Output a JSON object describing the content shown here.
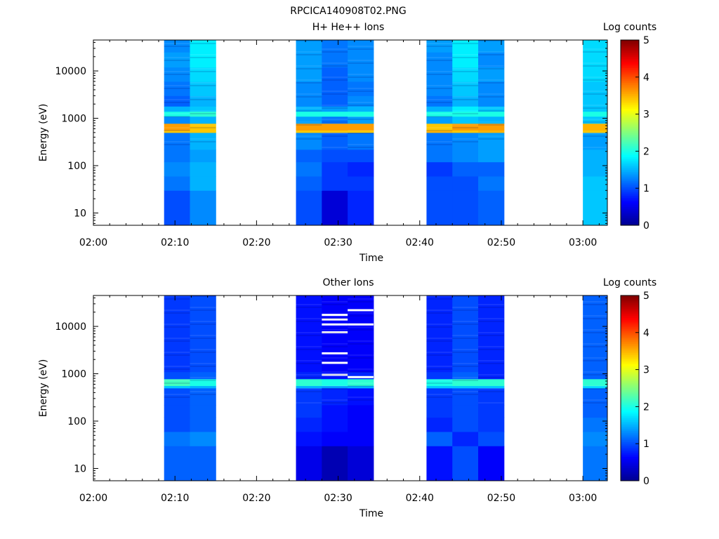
{
  "title": "RPCICA140908T02.PNG",
  "colormap": [
    "#00008f",
    "#0000ff",
    "#0080ff",
    "#00ffff",
    "#80ff80",
    "#ffff00",
    "#ff8000",
    "#ff0000",
    "#800000"
  ],
  "chart_data": [
    {
      "type": "heatmap",
      "title": "H+ He++ Ions",
      "xlabel": "Time",
      "ylabel": "Energy (eV)",
      "colorbar_label": "Log counts",
      "colorbar_ticks": [
        "0",
        "1",
        "2",
        "3",
        "4",
        "5"
      ],
      "clim": [
        0,
        5
      ],
      "xlim": [
        "02:00",
        "03:03"
      ],
      "ylim": [
        5.5,
        45000
      ],
      "yscale": "log",
      "xticks": [
        "02:00",
        "02:10",
        "02:20",
        "02:30",
        "02:40",
        "02:50",
        "03:00"
      ],
      "yticks": [
        "10",
        "100",
        "1000",
        "10000"
      ],
      "time_bins": [
        {
          "start": "02:08:40",
          "end": "02:11:50"
        },
        {
          "start": "02:11:50",
          "end": "02:15:00"
        },
        {
          "start": "02:24:50",
          "end": "02:28:00"
        },
        {
          "start": "02:28:00",
          "end": "02:31:10"
        },
        {
          "start": "02:31:10",
          "end": "02:34:20"
        },
        {
          "start": "02:40:50",
          "end": "02:44:00"
        },
        {
          "start": "02:44:00",
          "end": "02:47:10"
        },
        {
          "start": "02:47:10",
          "end": "02:50:20"
        },
        {
          "start": "03:00:00",
          "end": "03:03:10"
        }
      ],
      "energy_bins": [
        {
          "lo": 5.5,
          "hi": 30,
          "values": [
            1.0,
            1.3,
            1.0,
            0.4,
            0.8,
            1.0,
            1.0,
            1.1,
            1.6
          ]
        },
        {
          "lo": 30,
          "hi": 60,
          "values": [
            1.2,
            1.5,
            1.1,
            0.9,
            0.9,
            1.0,
            1.0,
            1.2,
            1.6
          ]
        },
        {
          "lo": 60,
          "hi": 120,
          "values": [
            1.3,
            1.5,
            1.2,
            0.9,
            0.8,
            0.9,
            1.1,
            1.1,
            1.5
          ]
        },
        {
          "lo": 120,
          "hi": 220,
          "values": [
            1.2,
            1.4,
            1.1,
            1.0,
            1.0,
            1.2,
            1.3,
            1.4,
            1.5
          ]
        },
        {
          "lo": 220,
          "hi": 500,
          "values": [
            1.2,
            1.5,
            1.3,
            1.1,
            1.2,
            1.2,
            1.3,
            1.4,
            1.4
          ]
        },
        {
          "lo": 500,
          "hi": 560,
          "values": [
            3.4,
            3.4,
            3.4,
            3.4,
            3.4,
            3.5,
            3.4,
            3.5,
            3.4
          ]
        },
        {
          "lo": 560,
          "hi": 780,
          "values": [
            3.6,
            3.4,
            3.6,
            3.6,
            3.6,
            3.4,
            3.6,
            3.6,
            3.5
          ]
        },
        {
          "lo": 780,
          "hi": 1100,
          "values": [
            1.3,
            1.5,
            1.4,
            1.2,
            1.4,
            1.4,
            1.6,
            1.5,
            1.6
          ]
        },
        {
          "lo": 1100,
          "hi": 1400,
          "values": [
            2.0,
            2.1,
            2.0,
            2.0,
            2.0,
            2.0,
            2.0,
            2.0,
            2.0
          ]
        },
        {
          "lo": 1400,
          "hi": 1800,
          "values": [
            1.5,
            1.6,
            1.5,
            1.4,
            1.5,
            1.5,
            1.8,
            1.6,
            1.6
          ]
        },
        {
          "lo": 1800,
          "hi": 3000,
          "values": [
            1.1,
            1.5,
            1.3,
            1.1,
            1.3,
            1.2,
            1.5,
            1.3,
            1.6
          ]
        },
        {
          "lo": 3000,
          "hi": 6000,
          "values": [
            1.2,
            1.6,
            1.3,
            1.1,
            1.2,
            1.3,
            1.6,
            1.3,
            1.6
          ]
        },
        {
          "lo": 6000,
          "hi": 12000,
          "values": [
            1.3,
            1.7,
            1.4,
            1.1,
            1.3,
            1.3,
            1.7,
            1.4,
            1.7
          ]
        },
        {
          "lo": 12000,
          "hi": 25000,
          "values": [
            1.4,
            1.8,
            1.4,
            1.2,
            1.3,
            1.3,
            1.8,
            1.3,
            1.7
          ]
        },
        {
          "lo": 25000,
          "hi": 45000,
          "values": [
            1.3,
            1.8,
            1.4,
            1.2,
            1.3,
            1.4,
            1.8,
            1.4,
            1.7
          ]
        }
      ]
    },
    {
      "type": "heatmap",
      "title": "Other Ions",
      "xlabel": "Time",
      "ylabel": "Energy (eV)",
      "colorbar_label": "Log counts",
      "colorbar_ticks": [
        "0",
        "1",
        "2",
        "3",
        "4",
        "5"
      ],
      "clim": [
        0,
        5
      ],
      "xlim": [
        "02:00",
        "03:03"
      ],
      "ylim": [
        5.5,
        45000
      ],
      "yscale": "log",
      "xticks": [
        "02:00",
        "02:10",
        "02:20",
        "02:30",
        "02:40",
        "02:50",
        "03:00"
      ],
      "yticks": [
        "10",
        "100",
        "1000",
        "10000"
      ],
      "time_bins": [
        {
          "start": "02:08:40",
          "end": "02:11:50"
        },
        {
          "start": "02:11:50",
          "end": "02:15:00"
        },
        {
          "start": "02:24:50",
          "end": "02:28:00"
        },
        {
          "start": "02:28:00",
          "end": "02:31:10"
        },
        {
          "start": "02:31:10",
          "end": "02:34:20"
        },
        {
          "start": "02:40:50",
          "end": "02:44:00"
        },
        {
          "start": "02:44:00",
          "end": "02:47:10"
        },
        {
          "start": "02:47:10",
          "end": "02:50:20"
        },
        {
          "start": "03:00:00",
          "end": "03:03:10"
        }
      ],
      "energy_bins": [
        {
          "lo": 5.5,
          "hi": 30,
          "values": [
            1.1,
            1.1,
            0.5,
            0.2,
            0.4,
            0.7,
            1.0,
            0.6,
            1.2
          ]
        },
        {
          "lo": 30,
          "hi": 60,
          "values": [
            1.2,
            1.3,
            0.7,
            0.6,
            0.6,
            1.1,
            0.8,
            1.0,
            1.3
          ]
        },
        {
          "lo": 60,
          "hi": 120,
          "values": [
            1.0,
            1.1,
            0.8,
            0.7,
            0.6,
            0.8,
            1.0,
            0.9,
            1.2
          ]
        },
        {
          "lo": 120,
          "hi": 220,
          "values": [
            1.0,
            1.1,
            0.9,
            0.7,
            0.6,
            0.9,
            1.0,
            0.9,
            1.1
          ]
        },
        {
          "lo": 220,
          "hi": 500,
          "values": [
            1.0,
            1.1,
            0.9,
            0.8,
            0.7,
            0.9,
            1.0,
            0.9,
            1.1
          ]
        },
        {
          "lo": 500,
          "hi": 560,
          "values": [
            1.6,
            1.5,
            1.5,
            1.4,
            1.5,
            1.6,
            1.6,
            1.6,
            1.7
          ]
        },
        {
          "lo": 560,
          "hi": 780,
          "values": [
            2.2,
            2.0,
            2.1,
            2.0,
            2.1,
            2.0,
            2.1,
            2.1,
            2.1
          ]
        },
        {
          "lo": 780,
          "hi": 1100,
          "values": [
            1.0,
            1.1,
            0.8,
            0.7,
            0.8,
            0.9,
            1.1,
            0.8,
            1.1
          ]
        },
        {
          "lo": 1100,
          "hi": 3000,
          "values": [
            0.9,
            1.0,
            0.7,
            0.6,
            0.6,
            0.8,
            1.0,
            0.8,
            1.1
          ]
        },
        {
          "lo": 3000,
          "hi": 12000,
          "values": [
            0.9,
            1.0,
            0.7,
            0.6,
            0.6,
            0.8,
            1.0,
            0.8,
            1.1
          ]
        },
        {
          "lo": 12000,
          "hi": 45000,
          "values": [
            0.9,
            1.0,
            0.7,
            0.6,
            0.6,
            0.8,
            1.0,
            0.8,
            1.1
          ]
        }
      ],
      "no_data_bins": [
        {
          "time_bin": 3,
          "energy": 17500
        },
        {
          "time_bin": 3,
          "energy": 14000
        },
        {
          "time_bin": 3,
          "energy": 11000
        },
        {
          "time_bin": 3,
          "energy": 7500
        },
        {
          "time_bin": 3,
          "energy": 2700
        },
        {
          "time_bin": 3,
          "energy": 1700
        },
        {
          "time_bin": 3,
          "energy": 950
        },
        {
          "time_bin": 4,
          "energy": 22000
        },
        {
          "time_bin": 4,
          "energy": 11000
        },
        {
          "time_bin": 4,
          "energy": 850
        }
      ]
    }
  ]
}
